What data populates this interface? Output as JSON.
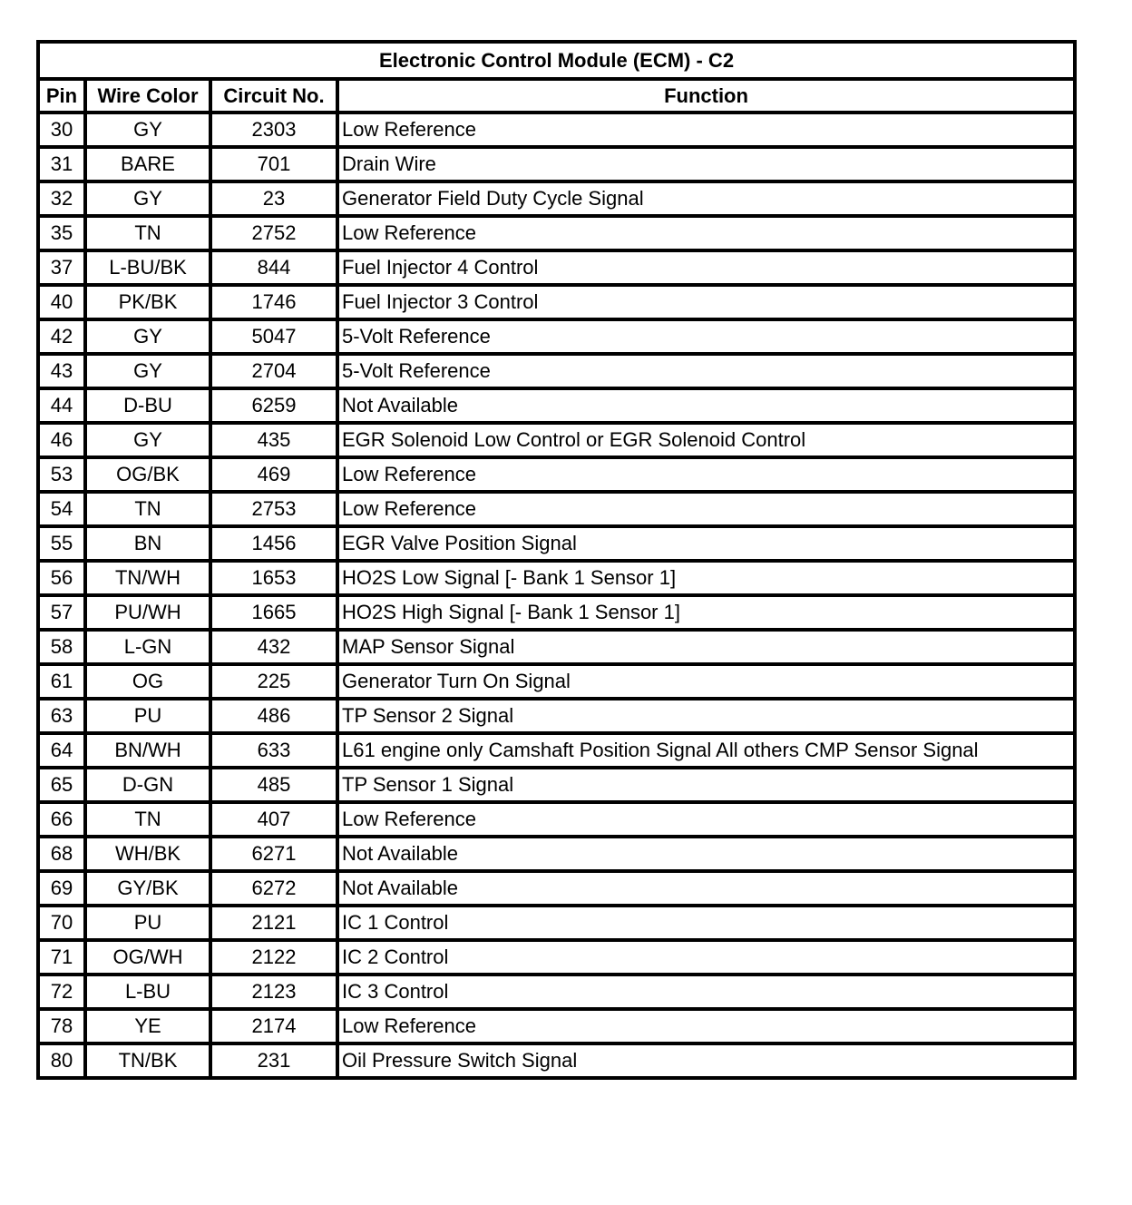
{
  "title": "Electronic Control Module (ECM) - C2",
  "headers": [
    "Pin",
    "Wire Color",
    "Circuit No.",
    "Function"
  ],
  "rows": [
    [
      "30",
      "GY",
      "2303",
      "Low Reference"
    ],
    [
      "31",
      "BARE",
      "701",
      "Drain Wire"
    ],
    [
      "32",
      "GY",
      "23",
      "Generator Field Duty Cycle Signal"
    ],
    [
      "35",
      "TN",
      "2752",
      "Low Reference"
    ],
    [
      "37",
      "L-BU/BK",
      "844",
      "Fuel Injector 4 Control"
    ],
    [
      "40",
      "PK/BK",
      "1746",
      "Fuel Injector 3 Control"
    ],
    [
      "42",
      "GY",
      "5047",
      "5-Volt Reference"
    ],
    [
      "43",
      "GY",
      "2704",
      "5-Volt Reference"
    ],
    [
      "44",
      "D-BU",
      "6259",
      "Not Available"
    ],
    [
      "46",
      "GY",
      "435",
      "EGR Solenoid Low Control or EGR Solenoid Control"
    ],
    [
      "53",
      "OG/BK",
      "469",
      "Low Reference"
    ],
    [
      "54",
      "TN",
      "2753",
      "Low Reference"
    ],
    [
      "55",
      "BN",
      "1456",
      "EGR Valve Position Signal"
    ],
    [
      "56",
      "TN/WH",
      "1653",
      "HO2S Low Signal [- Bank 1 Sensor 1]"
    ],
    [
      "57",
      "PU/WH",
      "1665",
      "HO2S High Signal [- Bank 1 Sensor 1]"
    ],
    [
      "58",
      "L-GN",
      "432",
      "MAP Sensor Signal"
    ],
    [
      "61",
      "OG",
      "225",
      "Generator Turn On Signal"
    ],
    [
      "63",
      "PU",
      "486",
      "TP Sensor 2 Signal"
    ],
    [
      "64",
      "BN/WH",
      "633",
      "L61 engine only Camshaft Position Signal All others CMP Sensor Signal"
    ],
    [
      "65",
      "D-GN",
      "485",
      "TP Sensor 1 Signal"
    ],
    [
      "66",
      "TN",
      "407",
      "Low Reference"
    ],
    [
      "68",
      "WH/BK",
      "6271",
      "Not Available"
    ],
    [
      "69",
      "GY/BK",
      "6272",
      "Not Available"
    ],
    [
      "70",
      "PU",
      "2121",
      "IC 1 Control"
    ],
    [
      "71",
      "OG/WH",
      "2122",
      "IC 2 Control"
    ],
    [
      "72",
      "L-BU",
      "2123",
      "IC 3 Control"
    ],
    [
      "78",
      "YE",
      "2174",
      "Low Reference"
    ],
    [
      "80",
      "TN/BK",
      "231",
      "Oil Pressure Switch Signal"
    ]
  ]
}
